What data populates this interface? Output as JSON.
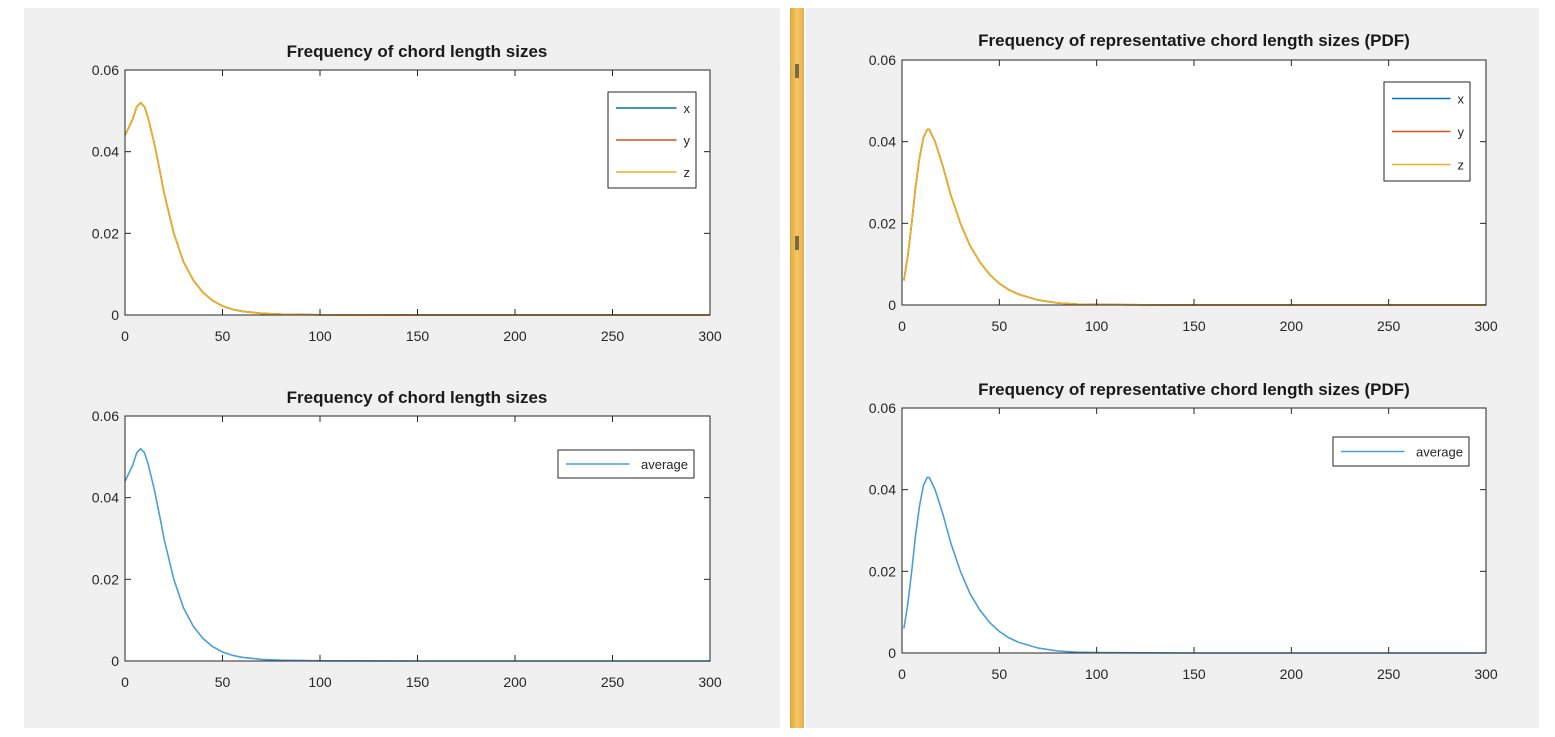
{
  "colors": {
    "x": "#0072bd",
    "y": "#d95319",
    "z": "#edb120",
    "average": "#4a9fd6"
  },
  "chart_data": [
    {
      "type": "line",
      "title": "Frequency of chord length sizes",
      "xlim": [
        0,
        300
      ],
      "ylim": [
        0,
        0.06
      ],
      "xticks": [
        0,
        50,
        100,
        150,
        200,
        250,
        300
      ],
      "yticks": [
        0,
        0.02,
        0.04,
        0.06
      ],
      "xtick_labels": [
        "0",
        "50",
        "100",
        "150",
        "200",
        "250",
        "300"
      ],
      "ytick_labels": [
        "0",
        "0.02",
        "0.04",
        "0.06"
      ],
      "legend": "top-right",
      "series": [
        {
          "name": "x",
          "color": "#0072bd",
          "x": [
            0,
            2,
            4,
            6,
            8,
            10,
            12,
            15,
            18,
            20,
            25,
            30,
            35,
            40,
            45,
            50,
            55,
            60,
            70,
            80,
            100,
            150,
            200,
            250,
            300
          ],
          "y": [
            0.044,
            0.046,
            0.048,
            0.051,
            0.052,
            0.051,
            0.048,
            0.042,
            0.035,
            0.03,
            0.02,
            0.013,
            0.0085,
            0.0055,
            0.0035,
            0.0022,
            0.0014,
            0.0009,
            0.0004,
            0.0002,
            5e-05,
            0,
            0,
            0,
            0
          ]
        },
        {
          "name": "y",
          "color": "#d95319",
          "x": [
            0,
            2,
            4,
            6,
            8,
            10,
            12,
            15,
            18,
            20,
            25,
            30,
            35,
            40,
            45,
            50,
            55,
            60,
            70,
            80,
            100,
            150,
            200,
            250,
            300
          ],
          "y": [
            0.044,
            0.046,
            0.048,
            0.051,
            0.052,
            0.051,
            0.048,
            0.042,
            0.035,
            0.03,
            0.02,
            0.013,
            0.0085,
            0.0055,
            0.0035,
            0.0022,
            0.0014,
            0.0009,
            0.0004,
            0.0002,
            5e-05,
            0,
            0,
            0,
            0
          ]
        },
        {
          "name": "z",
          "color": "#edb120",
          "x": [
            0,
            2,
            4,
            6,
            8,
            10,
            12,
            15,
            18,
            20,
            25,
            30,
            35,
            40,
            45,
            50,
            55,
            60,
            70,
            80,
            100,
            150,
            200,
            250,
            300
          ],
          "y": [
            0.044,
            0.046,
            0.048,
            0.051,
            0.052,
            0.051,
            0.048,
            0.042,
            0.035,
            0.03,
            0.02,
            0.013,
            0.0085,
            0.0055,
            0.0035,
            0.0022,
            0.0014,
            0.0009,
            0.0004,
            0.0002,
            5e-05,
            0,
            0,
            0,
            0
          ]
        }
      ]
    },
    {
      "type": "line",
      "title": "Frequency of chord length sizes",
      "xlim": [
        0,
        300
      ],
      "ylim": [
        0,
        0.06
      ],
      "xticks": [
        0,
        50,
        100,
        150,
        200,
        250,
        300
      ],
      "yticks": [
        0,
        0.02,
        0.04,
        0.06
      ],
      "xtick_labels": [
        "0",
        "50",
        "100",
        "150",
        "200",
        "250",
        "300"
      ],
      "ytick_labels": [
        "0",
        "0.02",
        "0.04",
        "0.06"
      ],
      "legend": "top-right",
      "series": [
        {
          "name": "average",
          "color": "#4a9fd6",
          "x": [
            0,
            2,
            4,
            6,
            8,
            10,
            12,
            15,
            18,
            20,
            25,
            30,
            35,
            40,
            45,
            50,
            55,
            60,
            70,
            80,
            100,
            150,
            200,
            250,
            300
          ],
          "y": [
            0.044,
            0.046,
            0.048,
            0.051,
            0.052,
            0.051,
            0.048,
            0.042,
            0.035,
            0.03,
            0.02,
            0.013,
            0.0085,
            0.0055,
            0.0035,
            0.0022,
            0.0014,
            0.0009,
            0.0004,
            0.0002,
            5e-05,
            0,
            0,
            0,
            0
          ]
        }
      ]
    },
    {
      "type": "line",
      "title": "Frequency of representative chord length sizes (PDF)",
      "xlim": [
        0,
        300
      ],
      "ylim": [
        0,
        0.06
      ],
      "xticks": [
        0,
        50,
        100,
        150,
        200,
        250,
        300
      ],
      "yticks": [
        0,
        0.02,
        0.04,
        0.06
      ],
      "xtick_labels": [
        "0",
        "50",
        "100",
        "150",
        "200",
        "250",
        "300"
      ],
      "ytick_labels": [
        "0",
        "0.02",
        "0.04",
        "0.06"
      ],
      "legend": "top-right",
      "series": [
        {
          "name": "x",
          "color": "#0072bd",
          "x": [
            1,
            3,
            5,
            7,
            9,
            11,
            13,
            14,
            15,
            17,
            19,
            21,
            25,
            30,
            35,
            40,
            45,
            50,
            55,
            60,
            70,
            80,
            90,
            100,
            150,
            200,
            250,
            300
          ],
          "y": [
            0.006,
            0.012,
            0.02,
            0.029,
            0.036,
            0.041,
            0.043,
            0.043,
            0.042,
            0.04,
            0.037,
            0.034,
            0.027,
            0.02,
            0.0145,
            0.0105,
            0.0075,
            0.0053,
            0.0037,
            0.0026,
            0.0012,
            0.0005,
            0.0002,
            0.0001,
            0,
            0,
            0,
            0
          ]
        },
        {
          "name": "y",
          "color": "#d95319",
          "x": [
            1,
            3,
            5,
            7,
            9,
            11,
            13,
            14,
            15,
            17,
            19,
            21,
            25,
            30,
            35,
            40,
            45,
            50,
            55,
            60,
            70,
            80,
            90,
            100,
            150,
            200,
            250,
            300
          ],
          "y": [
            0.006,
            0.012,
            0.02,
            0.029,
            0.036,
            0.041,
            0.043,
            0.043,
            0.042,
            0.04,
            0.037,
            0.034,
            0.027,
            0.02,
            0.0145,
            0.0105,
            0.0075,
            0.0053,
            0.0037,
            0.0026,
            0.0012,
            0.0005,
            0.0002,
            0.0001,
            0,
            0,
            0,
            0
          ]
        },
        {
          "name": "z",
          "color": "#edb120",
          "x": [
            1,
            3,
            5,
            7,
            9,
            11,
            13,
            14,
            15,
            17,
            19,
            21,
            25,
            30,
            35,
            40,
            45,
            50,
            55,
            60,
            70,
            80,
            90,
            100,
            150,
            200,
            250,
            300
          ],
          "y": [
            0.006,
            0.012,
            0.02,
            0.029,
            0.036,
            0.041,
            0.043,
            0.043,
            0.042,
            0.04,
            0.037,
            0.034,
            0.027,
            0.02,
            0.0145,
            0.0105,
            0.0075,
            0.0053,
            0.0037,
            0.0026,
            0.0012,
            0.0005,
            0.0002,
            0.0001,
            0,
            0,
            0,
            0
          ]
        }
      ]
    },
    {
      "type": "line",
      "title": "Frequency of representative chord length sizes (PDF)",
      "xlim": [
        0,
        300
      ],
      "ylim": [
        0,
        0.06
      ],
      "xticks": [
        0,
        50,
        100,
        150,
        200,
        250,
        300
      ],
      "yticks": [
        0,
        0.02,
        0.04,
        0.06
      ],
      "xtick_labels": [
        "0",
        "50",
        "100",
        "150",
        "200",
        "250",
        "300"
      ],
      "ytick_labels": [
        "0",
        "0.02",
        "0.04",
        "0.06"
      ],
      "legend": "top-right",
      "series": [
        {
          "name": "average",
          "color": "#4a9fd6",
          "x": [
            1,
            3,
            5,
            7,
            9,
            11,
            13,
            14,
            15,
            17,
            19,
            21,
            25,
            30,
            35,
            40,
            45,
            50,
            55,
            60,
            70,
            80,
            90,
            100,
            150,
            200,
            250,
            300
          ],
          "y": [
            0.006,
            0.012,
            0.02,
            0.029,
            0.036,
            0.041,
            0.043,
            0.043,
            0.042,
            0.04,
            0.037,
            0.034,
            0.027,
            0.02,
            0.0145,
            0.0105,
            0.0075,
            0.0053,
            0.0037,
            0.0026,
            0.0012,
            0.0005,
            0.0002,
            0.0001,
            0,
            0,
            0,
            0
          ]
        }
      ]
    }
  ]
}
